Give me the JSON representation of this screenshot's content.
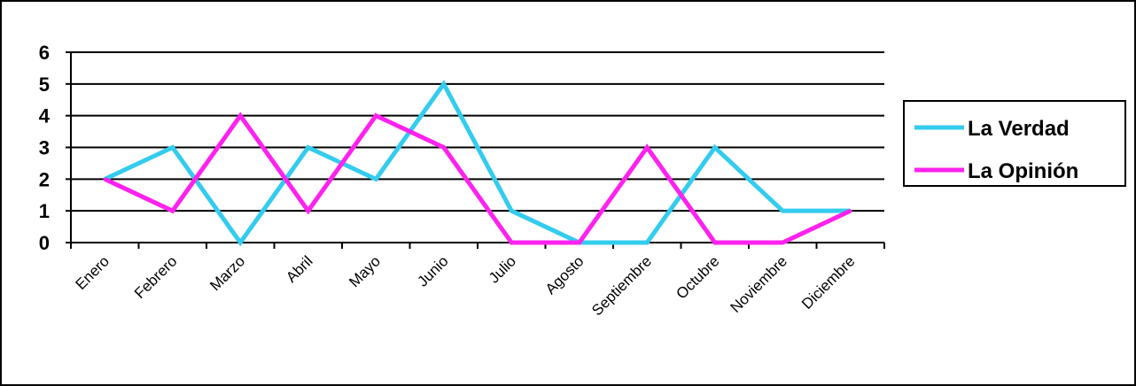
{
  "chart_data": {
    "type": "line",
    "categories": [
      "Enero",
      "Febrero",
      "Marzo",
      "Abril",
      "Mayo",
      "Junio",
      "Julio",
      "Agosto",
      "Septiembre",
      "Octubre",
      "Noviembre",
      "Diciembre"
    ],
    "series": [
      {
        "name": "La Verdad",
        "color": "#33ccee",
        "values": [
          2,
          3,
          0,
          3,
          2,
          5,
          1,
          0,
          0,
          3,
          1,
          1
        ]
      },
      {
        "name": "La Opinión",
        "color": "#ff22ee",
        "values": [
          2,
          1,
          4,
          1,
          4,
          3,
          0,
          0,
          3,
          0,
          0,
          1
        ]
      }
    ],
    "yticks": [
      0,
      1,
      2,
      3,
      4,
      5,
      6
    ],
    "ylim": [
      0,
      6
    ],
    "title": "",
    "xlabel": "",
    "ylabel": "",
    "grid": "horizontal",
    "legend": "right"
  }
}
